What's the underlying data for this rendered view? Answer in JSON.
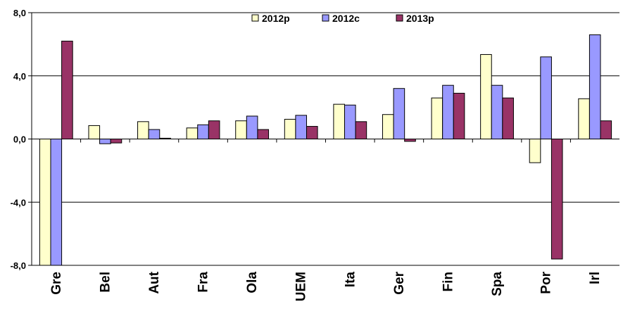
{
  "chart_data": {
    "type": "bar",
    "title": "",
    "xlabel": "",
    "ylabel": "",
    "categories": [
      "Gre",
      "Bel",
      "Aut",
      "Fra",
      "Ola",
      "UEM",
      "Ita",
      "Ger",
      "Fin",
      "Spa",
      "Por",
      "Irl"
    ],
    "series": [
      {
        "name": "2012p",
        "color": "#ffffcc",
        "values": [
          -8.2,
          0.85,
          1.1,
          0.7,
          1.15,
          1.25,
          2.2,
          1.55,
          2.6,
          5.35,
          -1.5,
          2.55
        ]
      },
      {
        "name": "2012c",
        "color": "#9999ff",
        "values": [
          -8.2,
          -0.3,
          0.6,
          0.9,
          1.45,
          1.5,
          2.15,
          3.2,
          3.4,
          3.4,
          5.2,
          6.6
        ]
      },
      {
        "name": "2013p",
        "color": "#993366",
        "values": [
          6.2,
          -0.25,
          0.05,
          1.15,
          0.6,
          0.8,
          1.1,
          -0.15,
          2.9,
          2.6,
          -7.6,
          1.15
        ]
      }
    ],
    "ylim": [
      -8.0,
      8.0
    ],
    "yticks": [
      "8,0",
      "4,0",
      "0,0",
      "-4,0",
      "-8,0"
    ],
    "ytick_values": [
      8,
      4,
      0,
      -4,
      -8
    ],
    "grid": true,
    "legend_position": "top-center"
  }
}
